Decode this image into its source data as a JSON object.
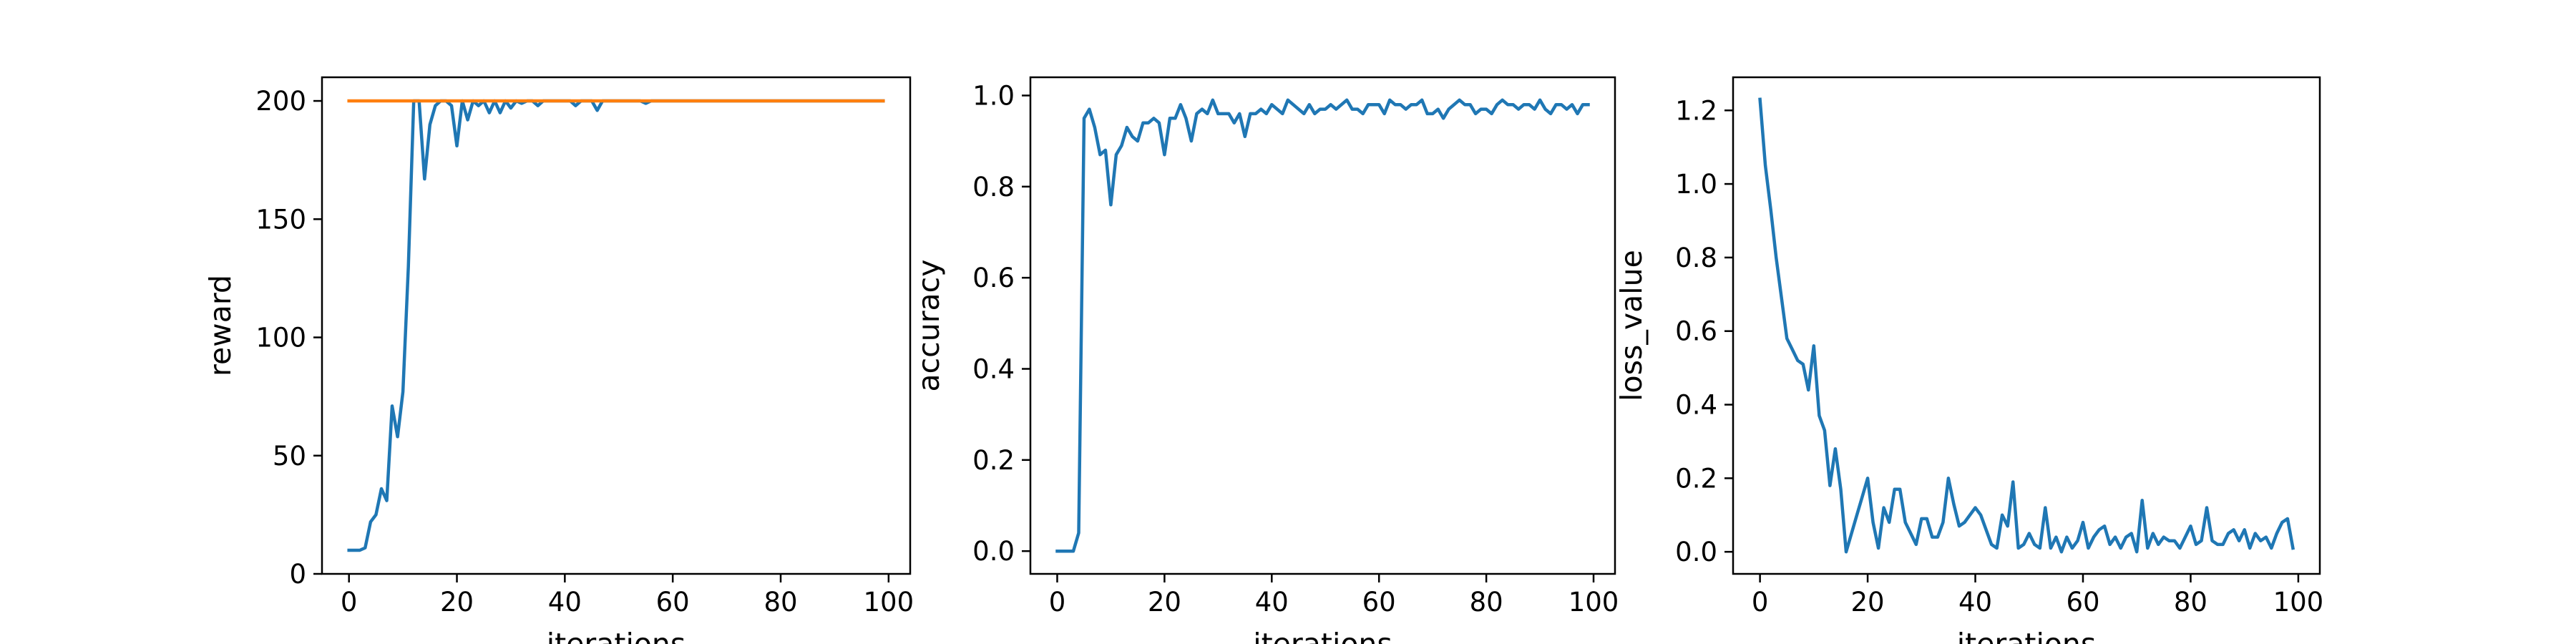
{
  "chart_data": [
    {
      "type": "line",
      "xlabel": "iterations",
      "ylabel": "reward",
      "xlim": [
        -5,
        104
      ],
      "ylim": [
        0,
        210
      ],
      "xticks": [
        0,
        20,
        40,
        60,
        80,
        100
      ],
      "yticks": [
        0,
        50,
        100,
        150,
        200
      ],
      "grid": false,
      "series": [
        {
          "color": "#1f77b4",
          "x": [
            0,
            1,
            2,
            3,
            4,
            5,
            6,
            7,
            8,
            9,
            10,
            11,
            12,
            13,
            14,
            15,
            16,
            17,
            18,
            19,
            20,
            21,
            22,
            23,
            24,
            25,
            26,
            27,
            28,
            29,
            30,
            31,
            32,
            33,
            34,
            35,
            36,
            37,
            38,
            39,
            40,
            41,
            42,
            43,
            44,
            45,
            46,
            47,
            48,
            49,
            50,
            51,
            52,
            53,
            54,
            55,
            56,
            57,
            58,
            59,
            60,
            61,
            62,
            63,
            64,
            65,
            66,
            67,
            68,
            69,
            70,
            71,
            72,
            73,
            74,
            75,
            76,
            77,
            78,
            79,
            80,
            81,
            82,
            83,
            84,
            85,
            86,
            87,
            88,
            89,
            90,
            91,
            92,
            93,
            94,
            95,
            96,
            97,
            98,
            99
          ],
          "values": [
            10,
            10,
            10,
            11,
            22,
            25,
            36,
            31,
            71,
            58,
            77,
            130,
            200,
            200,
            167,
            190,
            198,
            200,
            200,
            198,
            181,
            200,
            192,
            200,
            198,
            200,
            195,
            200,
            195,
            200,
            197,
            200,
            199,
            200,
            200,
            198,
            200,
            200,
            200,
            200,
            200,
            200,
            198,
            200,
            200,
            200,
            196,
            200,
            200,
            200,
            200,
            200,
            200,
            200,
            200,
            199,
            200,
            200,
            200,
            200,
            200,
            200,
            200,
            200,
            200,
            200,
            200,
            200,
            200,
            200,
            200,
            200,
            200,
            200,
            200,
            200,
            200,
            200,
            200,
            200,
            200,
            200,
            200,
            200,
            200,
            200,
            200,
            200,
            200,
            200,
            200,
            200,
            200,
            200,
            200,
            200,
            200,
            200,
            200,
            200
          ]
        },
        {
          "color": "#ff7f0e",
          "x": [
            0,
            99
          ],
          "values": [
            200,
            200
          ]
        }
      ]
    },
    {
      "type": "line",
      "xlabel": "iterations",
      "ylabel": "accuracy",
      "xlim": [
        -5,
        104
      ],
      "ylim": [
        -0.05,
        1.04
      ],
      "xticks": [
        0,
        20,
        40,
        60,
        80,
        100
      ],
      "yticks": [
        0.0,
        0.2,
        0.4,
        0.6,
        0.8,
        1.0
      ],
      "grid": false,
      "series": [
        {
          "color": "#1f77b4",
          "x": [
            0,
            1,
            2,
            3,
            4,
            5,
            6,
            7,
            8,
            9,
            10,
            11,
            12,
            13,
            14,
            15,
            16,
            17,
            18,
            19,
            20,
            21,
            22,
            23,
            24,
            25,
            26,
            27,
            28,
            29,
            30,
            31,
            32,
            33,
            34,
            35,
            36,
            37,
            38,
            39,
            40,
            41,
            42,
            43,
            44,
            45,
            46,
            47,
            48,
            49,
            50,
            51,
            52,
            53,
            54,
            55,
            56,
            57,
            58,
            59,
            60,
            61,
            62,
            63,
            64,
            65,
            66,
            67,
            68,
            69,
            70,
            71,
            72,
            73,
            74,
            75,
            76,
            77,
            78,
            79,
            80,
            81,
            82,
            83,
            84,
            85,
            86,
            87,
            88,
            89,
            90,
            91,
            92,
            93,
            94,
            95,
            96,
            97,
            98,
            99
          ],
          "values": [
            0.0,
            0.0,
            0.0,
            0.0,
            0.04,
            0.95,
            0.97,
            0.93,
            0.87,
            0.88,
            0.76,
            0.87,
            0.89,
            0.93,
            0.91,
            0.9,
            0.94,
            0.94,
            0.95,
            0.94,
            0.87,
            0.95,
            0.95,
            0.98,
            0.95,
            0.9,
            0.96,
            0.97,
            0.96,
            0.99,
            0.96,
            0.96,
            0.96,
            0.94,
            0.96,
            0.91,
            0.96,
            0.96,
            0.97,
            0.96,
            0.98,
            0.97,
            0.96,
            0.99,
            0.98,
            0.97,
            0.96,
            0.98,
            0.96,
            0.97,
            0.97,
            0.98,
            0.97,
            0.98,
            0.99,
            0.97,
            0.97,
            0.96,
            0.98,
            0.98,
            0.98,
            0.96,
            0.99,
            0.98,
            0.98,
            0.97,
            0.98,
            0.98,
            0.99,
            0.96,
            0.96,
            0.97,
            0.95,
            0.97,
            0.98,
            0.99,
            0.98,
            0.98,
            0.96,
            0.97,
            0.97,
            0.96,
            0.98,
            0.99,
            0.98,
            0.98,
            0.97,
            0.98,
            0.98,
            0.97,
            0.99,
            0.97,
            0.96,
            0.98,
            0.98,
            0.97,
            0.98,
            0.96,
            0.98,
            0.98
          ]
        }
      ]
    },
    {
      "type": "line",
      "xlabel": "iterations",
      "ylabel": "loss_value",
      "xlim": [
        -5,
        104
      ],
      "ylim": [
        -0.06,
        1.29
      ],
      "xticks": [
        0,
        20,
        40,
        60,
        80,
        100
      ],
      "yticks": [
        0.0,
        0.2,
        0.4,
        0.6,
        0.8,
        1.0,
        1.2
      ],
      "grid": false,
      "series": [
        {
          "color": "#1f77b4",
          "x": [
            0,
            1,
            2,
            3,
            4,
            5,
            6,
            7,
            8,
            9,
            10,
            11,
            12,
            13,
            14,
            15,
            16,
            17,
            18,
            19,
            20,
            21,
            22,
            23,
            24,
            25,
            26,
            27,
            28,
            29,
            30,
            31,
            32,
            33,
            34,
            35,
            36,
            37,
            38,
            39,
            40,
            41,
            42,
            43,
            44,
            45,
            46,
            47,
            48,
            49,
            50,
            51,
            52,
            53,
            54,
            55,
            56,
            57,
            58,
            59,
            60,
            61,
            62,
            63,
            64,
            65,
            66,
            67,
            68,
            69,
            70,
            71,
            72,
            73,
            74,
            75,
            76,
            77,
            78,
            79,
            80,
            81,
            82,
            83,
            84,
            85,
            86,
            87,
            88,
            89,
            90,
            91,
            92,
            93,
            94,
            95,
            96,
            97,
            98,
            99
          ],
          "values": [
            1.23,
            1.05,
            0.93,
            0.8,
            0.69,
            0.58,
            0.55,
            0.52,
            0.51,
            0.44,
            0.56,
            0.37,
            0.33,
            0.18,
            0.28,
            0.17,
            0.0,
            0.05,
            0.1,
            0.15,
            0.2,
            0.08,
            0.01,
            0.12,
            0.08,
            0.17,
            0.17,
            0.08,
            0.05,
            0.02,
            0.09,
            0.09,
            0.04,
            0.04,
            0.08,
            0.2,
            0.13,
            0.07,
            0.08,
            0.1,
            0.12,
            0.1,
            0.06,
            0.02,
            0.01,
            0.1,
            0.07,
            0.19,
            0.01,
            0.02,
            0.05,
            0.02,
            0.01,
            0.12,
            0.01,
            0.04,
            0.0,
            0.04,
            0.01,
            0.03,
            0.08,
            0.01,
            0.04,
            0.06,
            0.07,
            0.02,
            0.04,
            0.01,
            0.04,
            0.05,
            0.0,
            0.14,
            0.01,
            0.05,
            0.02,
            0.04,
            0.03,
            0.03,
            0.01,
            0.04,
            0.07,
            0.02,
            0.03,
            0.12,
            0.03,
            0.02,
            0.02,
            0.05,
            0.06,
            0.03,
            0.06,
            0.01,
            0.05,
            0.03,
            0.04,
            0.01,
            0.05,
            0.08,
            0.09,
            0.01
          ]
        }
      ]
    }
  ]
}
